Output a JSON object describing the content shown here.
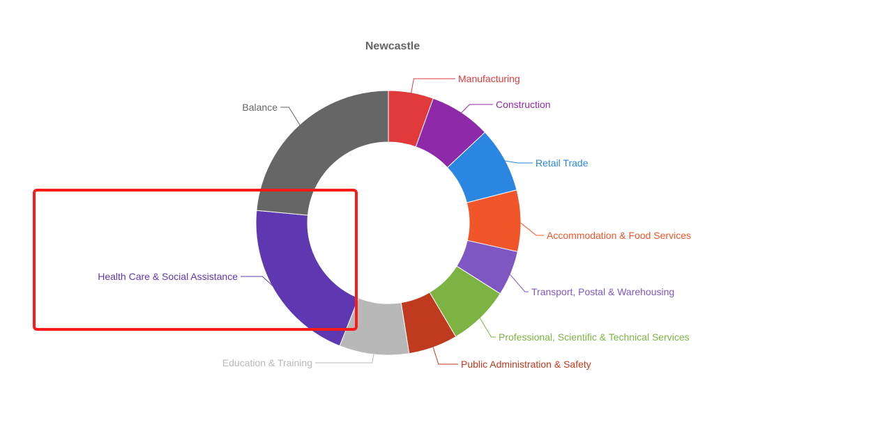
{
  "chart_data": {
    "type": "pie",
    "donut": true,
    "title": "Newcastle",
    "slices": [
      {
        "label": "Manufacturing",
        "value": 5.5,
        "color": "#e03a3a"
      },
      {
        "label": "Construction",
        "value": 7.5,
        "color": "#8e2aaa"
      },
      {
        "label": "Retail Trade",
        "value": 8.0,
        "color": "#2a86e0"
      },
      {
        "label": "Accommodation & Food Services",
        "value": 7.5,
        "color": "#f0562a"
      },
      {
        "label": "Transport, Postal & Warehousing",
        "value": 5.5,
        "color": "#7e57c2"
      },
      {
        "label": "Professional, Scientific & Technical Services",
        "value": 7.5,
        "color": "#7cb342"
      },
      {
        "label": "Public Administration & Safety",
        "value": 6.0,
        "color": "#bf3a1e"
      },
      {
        "label": "Education & Training",
        "value": 8.5,
        "color": "#b8b8b8"
      },
      {
        "label": "Health Care & Social Assistance",
        "value": 20.5,
        "color": "#5e38b0"
      },
      {
        "label": "Balance",
        "value": 23.5,
        "color": "#666666"
      }
    ],
    "legend": "none",
    "grid": false
  },
  "highlight": {
    "target": "Health Care & Social Assistance",
    "color": "#ff1a1a"
  }
}
